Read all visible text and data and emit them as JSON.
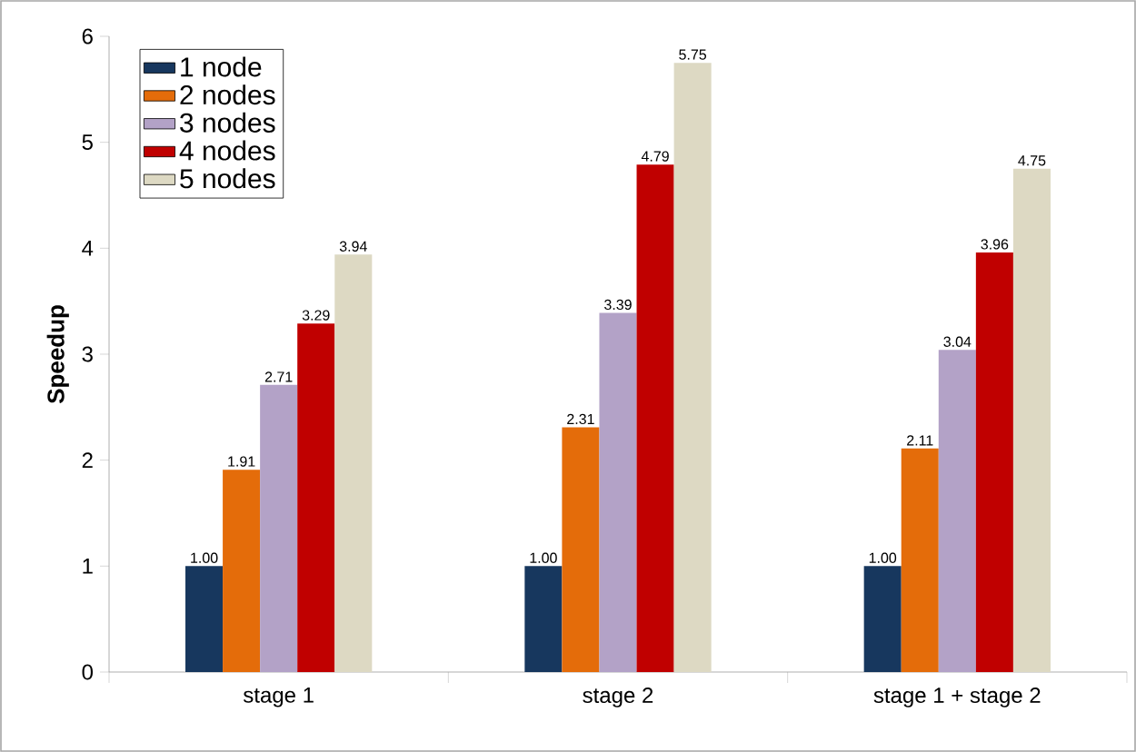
{
  "chart_data": {
    "type": "bar",
    "ylabel": "Speedup",
    "categories": [
      "stage 1",
      "stage 2",
      "stage 1 + stage 2"
    ],
    "series": [
      {
        "name": "1 node",
        "color": "#17375e",
        "values": [
          1.0,
          1.0,
          1.0
        ],
        "value_labels": [
          "1.00",
          "1.00",
          "1.00"
        ]
      },
      {
        "name": "2 nodes",
        "color": "#e46c0a",
        "values": [
          1.91,
          2.31,
          2.11
        ],
        "value_labels": [
          "1.91",
          "2.31",
          "2.11"
        ]
      },
      {
        "name": "3 nodes",
        "color": "#b3a2c7",
        "values": [
          2.71,
          3.39,
          3.04
        ],
        "value_labels": [
          "2.71",
          "3.39",
          "3.04"
        ]
      },
      {
        "name": "4 nodes",
        "color": "#c00000",
        "values": [
          3.29,
          4.79,
          3.96
        ],
        "value_labels": [
          "3.29",
          "4.79",
          "3.96"
        ]
      },
      {
        "name": "5 nodes",
        "color": "#ddd9c3",
        "values": [
          3.94,
          5.75,
          4.75
        ],
        "value_labels": [
          "3.94",
          "5.75",
          "4.75"
        ]
      }
    ],
    "ylim": [
      0,
      6
    ],
    "yticks": [
      0,
      1,
      2,
      3,
      4,
      5,
      6
    ],
    "legend": "top left"
  }
}
